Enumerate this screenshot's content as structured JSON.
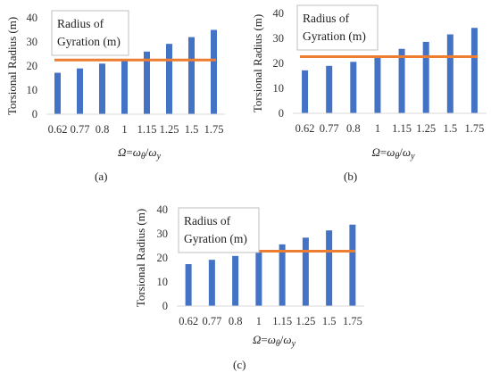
{
  "chart_data": [
    {
      "type": "bar",
      "panel_label": "(a)",
      "categories": [
        "0.62",
        "0.77",
        "0.8",
        "1",
        "1.15",
        "1.25",
        "1.5",
        "1.75"
      ],
      "series": [
        {
          "values": [
            17.2,
            19,
            21,
            22.2,
            26,
            29.2,
            32,
            35
          ]
        }
      ],
      "reference_line": {
        "name": "Radius of Gyration (m)",
        "value": 22.5,
        "legend_lines": [
          "Radius of",
          "Gyration (m)"
        ]
      },
      "xlabel": "Ω=ωθ/ωy",
      "ylabel": "Torsional Radius (m)",
      "ylim": [
        0,
        40
      ],
      "yticks": [
        "0",
        "10",
        "20",
        "30",
        "40"
      ],
      "bar_color": "#4472c4",
      "line_color": "#ed7d31",
      "grid": false,
      "legend_placement": "top-left"
    },
    {
      "type": "bar",
      "panel_label": "(b)",
      "categories": [
        "0.62",
        "0.77",
        "0.8",
        "1",
        "1.15",
        "1.25",
        "1.5",
        "1.75"
      ],
      "series": [
        {
          "values": [
            17.2,
            19,
            20.6,
            22.2,
            25.8,
            28.6,
            31.6,
            34.2
          ]
        }
      ],
      "reference_line": {
        "name": "Radius of Gyration (m)",
        "value": 22.7,
        "legend_lines": [
          "Radius of",
          "Gyration (m)"
        ]
      },
      "xlabel": "Ω=ωθ/ωy",
      "ylabel": "Torsional Radius (m)",
      "ylim": [
        0,
        40
      ],
      "yticks": [
        "0",
        "10",
        "20",
        "30",
        "40"
      ],
      "bar_color": "#4472c4",
      "line_color": "#ed7d31",
      "grid": false,
      "legend_placement": "top-left"
    },
    {
      "type": "bar",
      "panel_label": "(c)",
      "categories": [
        "0.62",
        "0.77",
        "0.8",
        "1",
        "1.15",
        "1.25",
        "1.5",
        "1.75"
      ],
      "series": [
        {
          "values": [
            17.4,
            19.2,
            20.8,
            22.4,
            25.6,
            28.4,
            31.4,
            33.8
          ]
        }
      ],
      "reference_line": {
        "name": "Radius of Gyration (m)",
        "value": 22.8,
        "legend_lines": [
          "Radius of",
          "Gyration (m)"
        ]
      },
      "xlabel": "Ω=ωθ/ωy",
      "ylabel": "Torsional Radius (m)",
      "ylim": [
        0,
        40
      ],
      "yticks": [
        "0",
        "10",
        "20",
        "30",
        "40"
      ],
      "bar_color": "#4472c4",
      "line_color": "#ed7d31",
      "grid": false,
      "legend_placement": "top-left"
    }
  ]
}
